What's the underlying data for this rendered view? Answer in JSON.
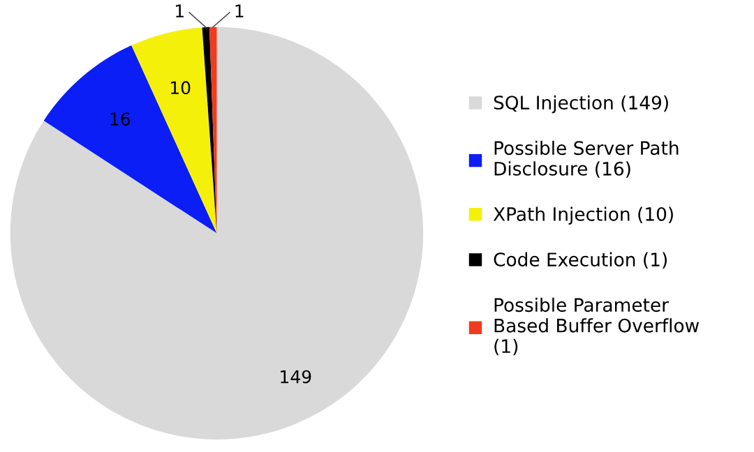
{
  "chart_data": {
    "type": "pie",
    "categories": [
      "SQL Injection (149)",
      "Possible Server Path Disclosure (16)",
      "XPath Injection (10)",
      "Code Execution (1)",
      "Possible Parameter Based Buffer Overflow (1)"
    ],
    "values": [
      149,
      16,
      10,
      1,
      1
    ],
    "colors": [
      "#d9d9d9",
      "#0a1ef5",
      "#f5f00a",
      "#000000",
      "#f03c1e"
    ],
    "data_labels": true,
    "legend": "right"
  }
}
